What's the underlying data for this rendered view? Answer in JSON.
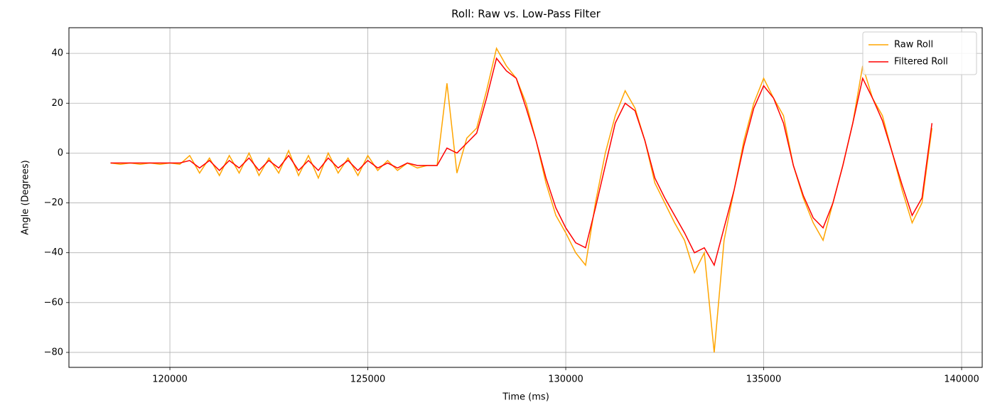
{
  "chart_data": {
    "type": "line",
    "title": "Roll: Raw vs. Low-Pass Filter",
    "xlabel": "Time (ms)",
    "ylabel": "Angle (Degrees)",
    "x": [
      118500,
      118750,
      119000,
      119250,
      119500,
      119750,
      120000,
      120250,
      120500,
      120750,
      121000,
      121250,
      121500,
      121750,
      122000,
      122250,
      122500,
      122750,
      123000,
      123250,
      123500,
      123750,
      124000,
      124250,
      124500,
      124750,
      125000,
      125250,
      125500,
      125750,
      126000,
      126250,
      126500,
      126750,
      127000,
      127250,
      127500,
      127750,
      128000,
      128250,
      128500,
      128750,
      129000,
      129250,
      129500,
      129750,
      130000,
      130250,
      130500,
      130750,
      131000,
      131250,
      131500,
      131750,
      132000,
      132250,
      132500,
      132750,
      133000,
      133250,
      133500,
      133750,
      134000,
      134250,
      134500,
      134750,
      135000,
      135250,
      135500,
      135750,
      136000,
      136250,
      136500,
      136750,
      137000,
      137250,
      137500,
      137750,
      138000,
      138250,
      138500,
      138750,
      139000,
      139250
    ],
    "series": [
      {
        "name": "Raw Roll",
        "color": "#ffa500",
        "values": [
          -4,
          -4.5,
          -4,
          -4.5,
          -4,
          -4.5,
          -4,
          -4.5,
          -1,
          -8,
          -2,
          -9,
          -1,
          -8,
          0,
          -9,
          -2,
          -8,
          1,
          -9,
          -1,
          -10,
          0,
          -8,
          -2,
          -9,
          -1,
          -7,
          -3,
          -7,
          -4,
          -6,
          -5,
          -5,
          28,
          -8,
          6,
          10,
          25,
          42,
          35,
          30,
          20,
          5,
          -12,
          -25,
          -32,
          -40,
          -45,
          -20,
          0,
          15,
          25,
          18,
          5,
          -12,
          -20,
          -28,
          -35,
          -48,
          -40,
          -80,
          -35,
          -15,
          5,
          20,
          30,
          22,
          15,
          -5,
          -18,
          -28,
          -35,
          -20,
          -5,
          12,
          35,
          22,
          15,
          0,
          -15,
          -28,
          -20,
          10
        ]
      },
      {
        "name": "Filtered Roll",
        "color": "#ff0000",
        "values": [
          -4,
          -4,
          -4,
          -4,
          -4,
          -4,
          -4,
          -4,
          -3,
          -6,
          -3,
          -7,
          -3,
          -6,
          -2,
          -7,
          -3,
          -6,
          -1,
          -7,
          -3,
          -7,
          -2,
          -6,
          -3,
          -7,
          -3,
          -6,
          -4,
          -6,
          -4,
          -5,
          -5,
          -5,
          2,
          0,
          4,
          8,
          22,
          38,
          33,
          30,
          18,
          5,
          -10,
          -22,
          -30,
          -36,
          -38,
          -22,
          -5,
          12,
          20,
          17,
          5,
          -10,
          -18,
          -25,
          -32,
          -40,
          -38,
          -45,
          -30,
          -15,
          3,
          18,
          27,
          22,
          12,
          -5,
          -17,
          -26,
          -30,
          -20,
          -5,
          12,
          30,
          22,
          13,
          0,
          -13,
          -25,
          -18,
          12
        ]
      }
    ],
    "xlim": [
      117450,
      140520
    ],
    "ylim": [
      -86,
      50.3
    ],
    "xticks": [
      120000,
      125000,
      130000,
      135000,
      140000
    ],
    "yticks": [
      {
        "value": -80,
        "label": "−80"
      },
      {
        "value": -60,
        "label": "−60"
      },
      {
        "value": -40,
        "label": "−40"
      },
      {
        "value": -20,
        "label": "−20"
      },
      0,
      20,
      40
    ],
    "grid": true,
    "legend": "upper right"
  }
}
